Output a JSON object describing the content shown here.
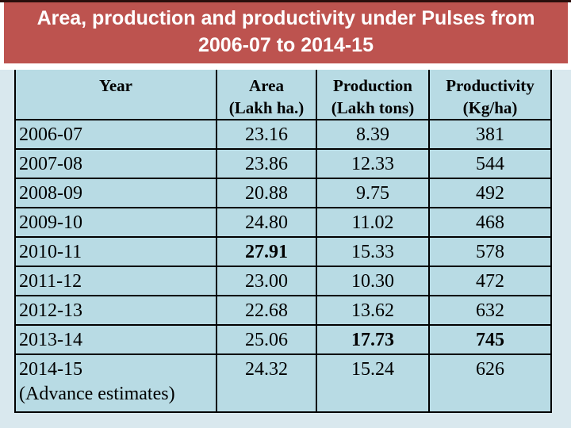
{
  "title": {
    "lines": [
      "Area, production and productivity under Pulses from",
      "2006-07 to 2014-15"
    ],
    "text": "Area, production and productivity under Pulses from 2006-07 to 2014-15"
  },
  "table": {
    "columns": [
      {
        "label": "Year",
        "unit": ""
      },
      {
        "label": "Area",
        "unit": "(Lakh ha.)"
      },
      {
        "label": "Production",
        "unit": "(Lakh tons)"
      },
      {
        "label": "Productivity",
        "unit": "(Kg/ha)"
      }
    ],
    "rows": [
      {
        "year": "2006-07",
        "area": "23.16",
        "production": "8.39",
        "productivity": "381"
      },
      {
        "year": "2007-08",
        "area": "23.86",
        "production": "12.33",
        "productivity": "544"
      },
      {
        "year": "2008-09",
        "area": "20.88",
        "production": "9.75",
        "productivity": "492"
      },
      {
        "year": "2009-10",
        "area": "24.80",
        "production": "11.02",
        "productivity": "468"
      },
      {
        "year": "2010-11",
        "area": "27.91",
        "production": "15.33",
        "productivity": "578",
        "bold": [
          "area"
        ]
      },
      {
        "year": "2011-12",
        "area": "23.00",
        "production": "10.30",
        "productivity": "472"
      },
      {
        "year": "2012-13",
        "area": "22.68",
        "production": "13.62",
        "productivity": "632"
      },
      {
        "year": "2013-14",
        "area": "25.06",
        "production": "17.73",
        "productivity": "745",
        "bold": [
          "production",
          "productivity"
        ]
      },
      {
        "year": "2014-15",
        "year_note": "(Advance estimates)",
        "area": "24.32",
        "production": "15.24",
        "productivity": "626"
      }
    ]
  },
  "colors": {
    "title_bar_background": "#bd534f",
    "title_text": "#ffffff",
    "page_background": "#d9e8ee",
    "cell_background": "#b8dbe4",
    "table_border": "#000000",
    "top_edge_line": "#2a0e0c",
    "title_band_background": "#ffffff"
  },
  "chart_data": {
    "type": "table",
    "title": "Area, production and productivity under Pulses from 2006-07 to 2014-15",
    "categories": [
      "2006-07",
      "2007-08",
      "2008-09",
      "2009-10",
      "2010-11",
      "2011-12",
      "2012-13",
      "2013-14",
      "2014-15 (Advance estimates)"
    ],
    "series": [
      {
        "name": "Area (Lakh ha.)",
        "values": [
          23.16,
          23.86,
          20.88,
          24.8,
          27.91,
          23.0,
          22.68,
          25.06,
          24.32
        ]
      },
      {
        "name": "Production (Lakh tons)",
        "values": [
          8.39,
          12.33,
          9.75,
          11.02,
          15.33,
          10.3,
          13.62,
          17.73,
          15.24
        ]
      },
      {
        "name": "Productivity (Kg/ha)",
        "values": [
          381,
          544,
          492,
          468,
          578,
          472,
          632,
          745,
          626
        ]
      }
    ],
    "emphasized_values": [
      {
        "category": "2010-11",
        "series": "Area (Lakh ha.)",
        "value": 27.91
      },
      {
        "category": "2013-14",
        "series": "Production (Lakh tons)",
        "value": 17.73
      },
      {
        "category": "2013-14",
        "series": "Productivity (Kg/ha)",
        "value": 745
      }
    ]
  }
}
